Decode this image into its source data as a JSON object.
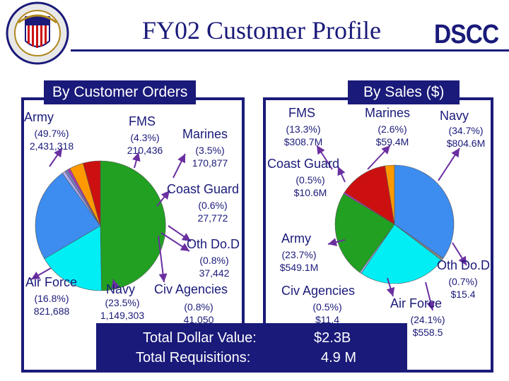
{
  "title": "FY02  Customer  Profile",
  "logo_text": "DSCC",
  "colors": {
    "navy": "#1a1a7a",
    "arrow": "#6a2fa0"
  },
  "chart_data": [
    {
      "type": "pie",
      "title": "By Customer Orders",
      "slices": [
        {
          "name": "Army",
          "percent_label": "(49.7%)",
          "value_label": "2,431,318",
          "value": 2431318,
          "color": "#22a022"
        },
        {
          "name": "Air  Force",
          "percent_label": "(16.8%)",
          "value_label": "821,688",
          "value": 821688,
          "color": "#00eef4"
        },
        {
          "name": "Navy",
          "percent_label": "(23.5%)",
          "value_label": "1,149,303",
          "value": 1149303,
          "color": "#3d8cf0"
        },
        {
          "name": "Civ  Agencies",
          "percent_label": "(0.8%)",
          "value_label": "41,050",
          "value": 41050,
          "color": "#b0aaf0"
        },
        {
          "name": "Oth Do.D",
          "percent_label": "(0.8%)",
          "value_label": "37,442",
          "value": 37442,
          "color": "#7a7ac0"
        },
        {
          "name": "Coast Guard",
          "percent_label": "(0.6%)",
          "value_label": "27,772",
          "value": 27772,
          "color": "#c030c0"
        },
        {
          "name": "Marines",
          "percent_label": "(3.5%)",
          "value_label": "170,877",
          "value": 170877,
          "color": "#ff9900"
        },
        {
          "name": "FMS",
          "percent_label": "(4.3%)",
          "value_label": "210,436",
          "value": 210436,
          "color": "#cc1010"
        }
      ]
    },
    {
      "type": "pie",
      "title": "By Sales ($)",
      "slices": [
        {
          "name": "Navy",
          "percent_label": "(34.7%)",
          "value_label": "$804.6M",
          "value": 804.6,
          "color": "#3d8cf0"
        },
        {
          "name": "Oth Do.D",
          "percent_label": "(0.7%)",
          "value_label": "$15.4",
          "value": 15.4,
          "color": "#888888"
        },
        {
          "name": "Air  Force",
          "percent_label": "(24.1%)",
          "value_label": "$558.5",
          "value": 558.5,
          "color": "#00eef4"
        },
        {
          "name": "Civ  Agencies",
          "percent_label": "(0.5%)",
          "value_label": "$11.4",
          "value": 11.4,
          "color": "#b0aaf0"
        },
        {
          "name": "Army",
          "percent_label": "(23.7%)",
          "value_label": "$549.1M",
          "value": 549.1,
          "color": "#22a022"
        },
        {
          "name": "Coast Guard",
          "percent_label": "(0.5%)",
          "value_label": "$10.6M",
          "value": 10.6,
          "color": "#c030c0"
        },
        {
          "name": "FMS",
          "percent_label": "(13.3%)",
          "value_label": "$308.7M",
          "value": 308.7,
          "color": "#cc1010"
        },
        {
          "name": "Marines",
          "percent_label": "(2.6%)",
          "value_label": "$59.4M",
          "value": 59.4,
          "color": "#ff9900"
        }
      ]
    }
  ],
  "totals": {
    "dollar_label": "Total  Dollar Value:",
    "dollar_value": "$2.3B",
    "req_label": "Total Requisitions:",
    "req_value": "4.9 M"
  }
}
